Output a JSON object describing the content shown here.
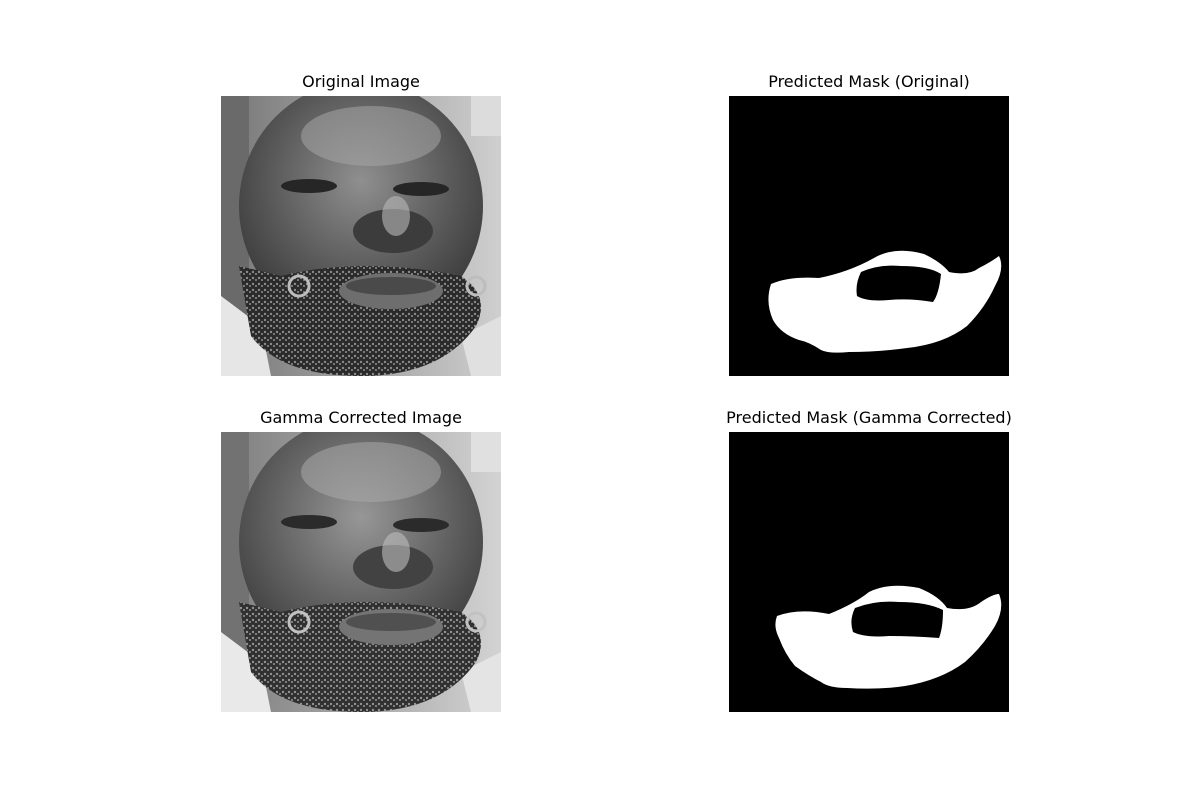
{
  "figure": {
    "panels": [
      {
        "key": "original-image",
        "title": "Original Image",
        "content": "grayscale face photo"
      },
      {
        "key": "predicted-mask-original",
        "title": "Predicted Mask (Original)",
        "content": "binary mask"
      },
      {
        "key": "gamma-corrected-image",
        "title": "Gamma Corrected Image",
        "content": "grayscale face photo"
      },
      {
        "key": "predicted-mask-gamma",
        "title": "Predicted Mask (Gamma Corrected)",
        "content": "binary mask"
      }
    ]
  },
  "colors": {
    "background": "#ffffff",
    "mask_background": "#000000",
    "mask_foreground": "#ffffff"
  }
}
